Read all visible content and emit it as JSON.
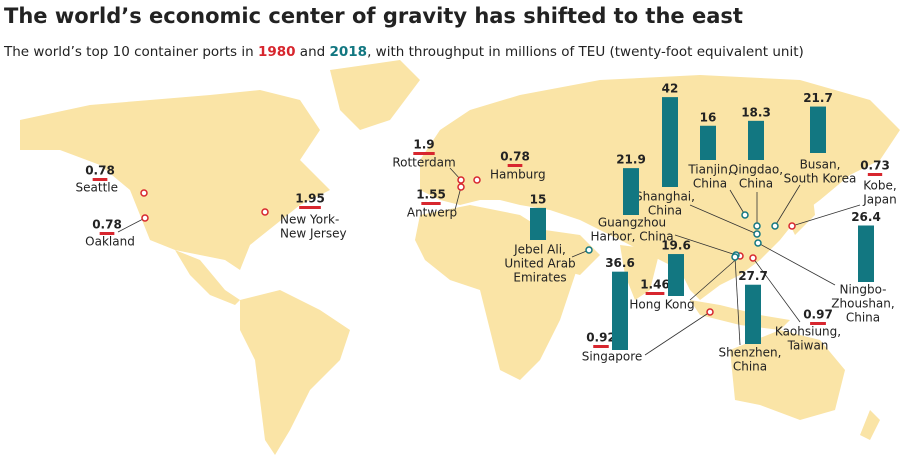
{
  "title": "The world’s economic center of gravity has shifted to the east",
  "subtitle": {
    "before": "The world’s top 10 container ports in ",
    "year_1980": "1980",
    "middle": " and ",
    "year_2018": "2018",
    "after": ", with throughput in millions of TEU (twenty-foot equivalent unit)"
  },
  "colors": {
    "1980": "#d7262e",
    "2018": "#127781",
    "land": "#fae4a6"
  },
  "ports": [
    {
      "name": [
        "Seattle"
      ],
      "v1980": 0.78
    },
    {
      "name": [
        "Oakland"
      ],
      "v1980": 0.78
    },
    {
      "name": [
        "New York-",
        "New Jersey"
      ],
      "v1980": 1.95
    },
    {
      "name": [
        "Rotterdam"
      ],
      "v1980": 1.9
    },
    {
      "name": [
        "Hamburg"
      ],
      "v1980": 0.78
    },
    {
      "name": [
        "Antwerp"
      ],
      "v1980": 1.55
    },
    {
      "name": [
        "Kobe,",
        "Japan"
      ],
      "v1980": 0.73
    },
    {
      "name": [
        "Kaohsiung,",
        "Taiwan"
      ],
      "v1980": 0.97
    },
    {
      "name": [
        "Hong Kong"
      ],
      "v1980": 1.46,
      "v2018": 19.6
    },
    {
      "name": [
        "Singapore"
      ],
      "v1980": 0.92,
      "v2018": 36.6
    },
    {
      "name": [
        "Shanghai,",
        "China"
      ],
      "v2018": 42
    },
    {
      "name": [
        "Tianjin,",
        "China"
      ],
      "v2018": 16
    },
    {
      "name": [
        "Qingdao,",
        "China"
      ],
      "v2018": 18.3
    },
    {
      "name": [
        "Busan,",
        "South Korea"
      ],
      "v2018": 21.7
    },
    {
      "name": [
        "Guangzhou",
        "Harbor, China"
      ],
      "v2018": 21.9
    },
    {
      "name": [
        "Jebel Ali,",
        "United Arab",
        "Emirates"
      ],
      "v2018": 15
    },
    {
      "name": [
        "Shenzhen,",
        "China"
      ],
      "v2018": 27.7
    },
    {
      "name": [
        "Ningbo-",
        "Zhoushan,",
        "China"
      ],
      "v2018": 26.4
    }
  ]
}
